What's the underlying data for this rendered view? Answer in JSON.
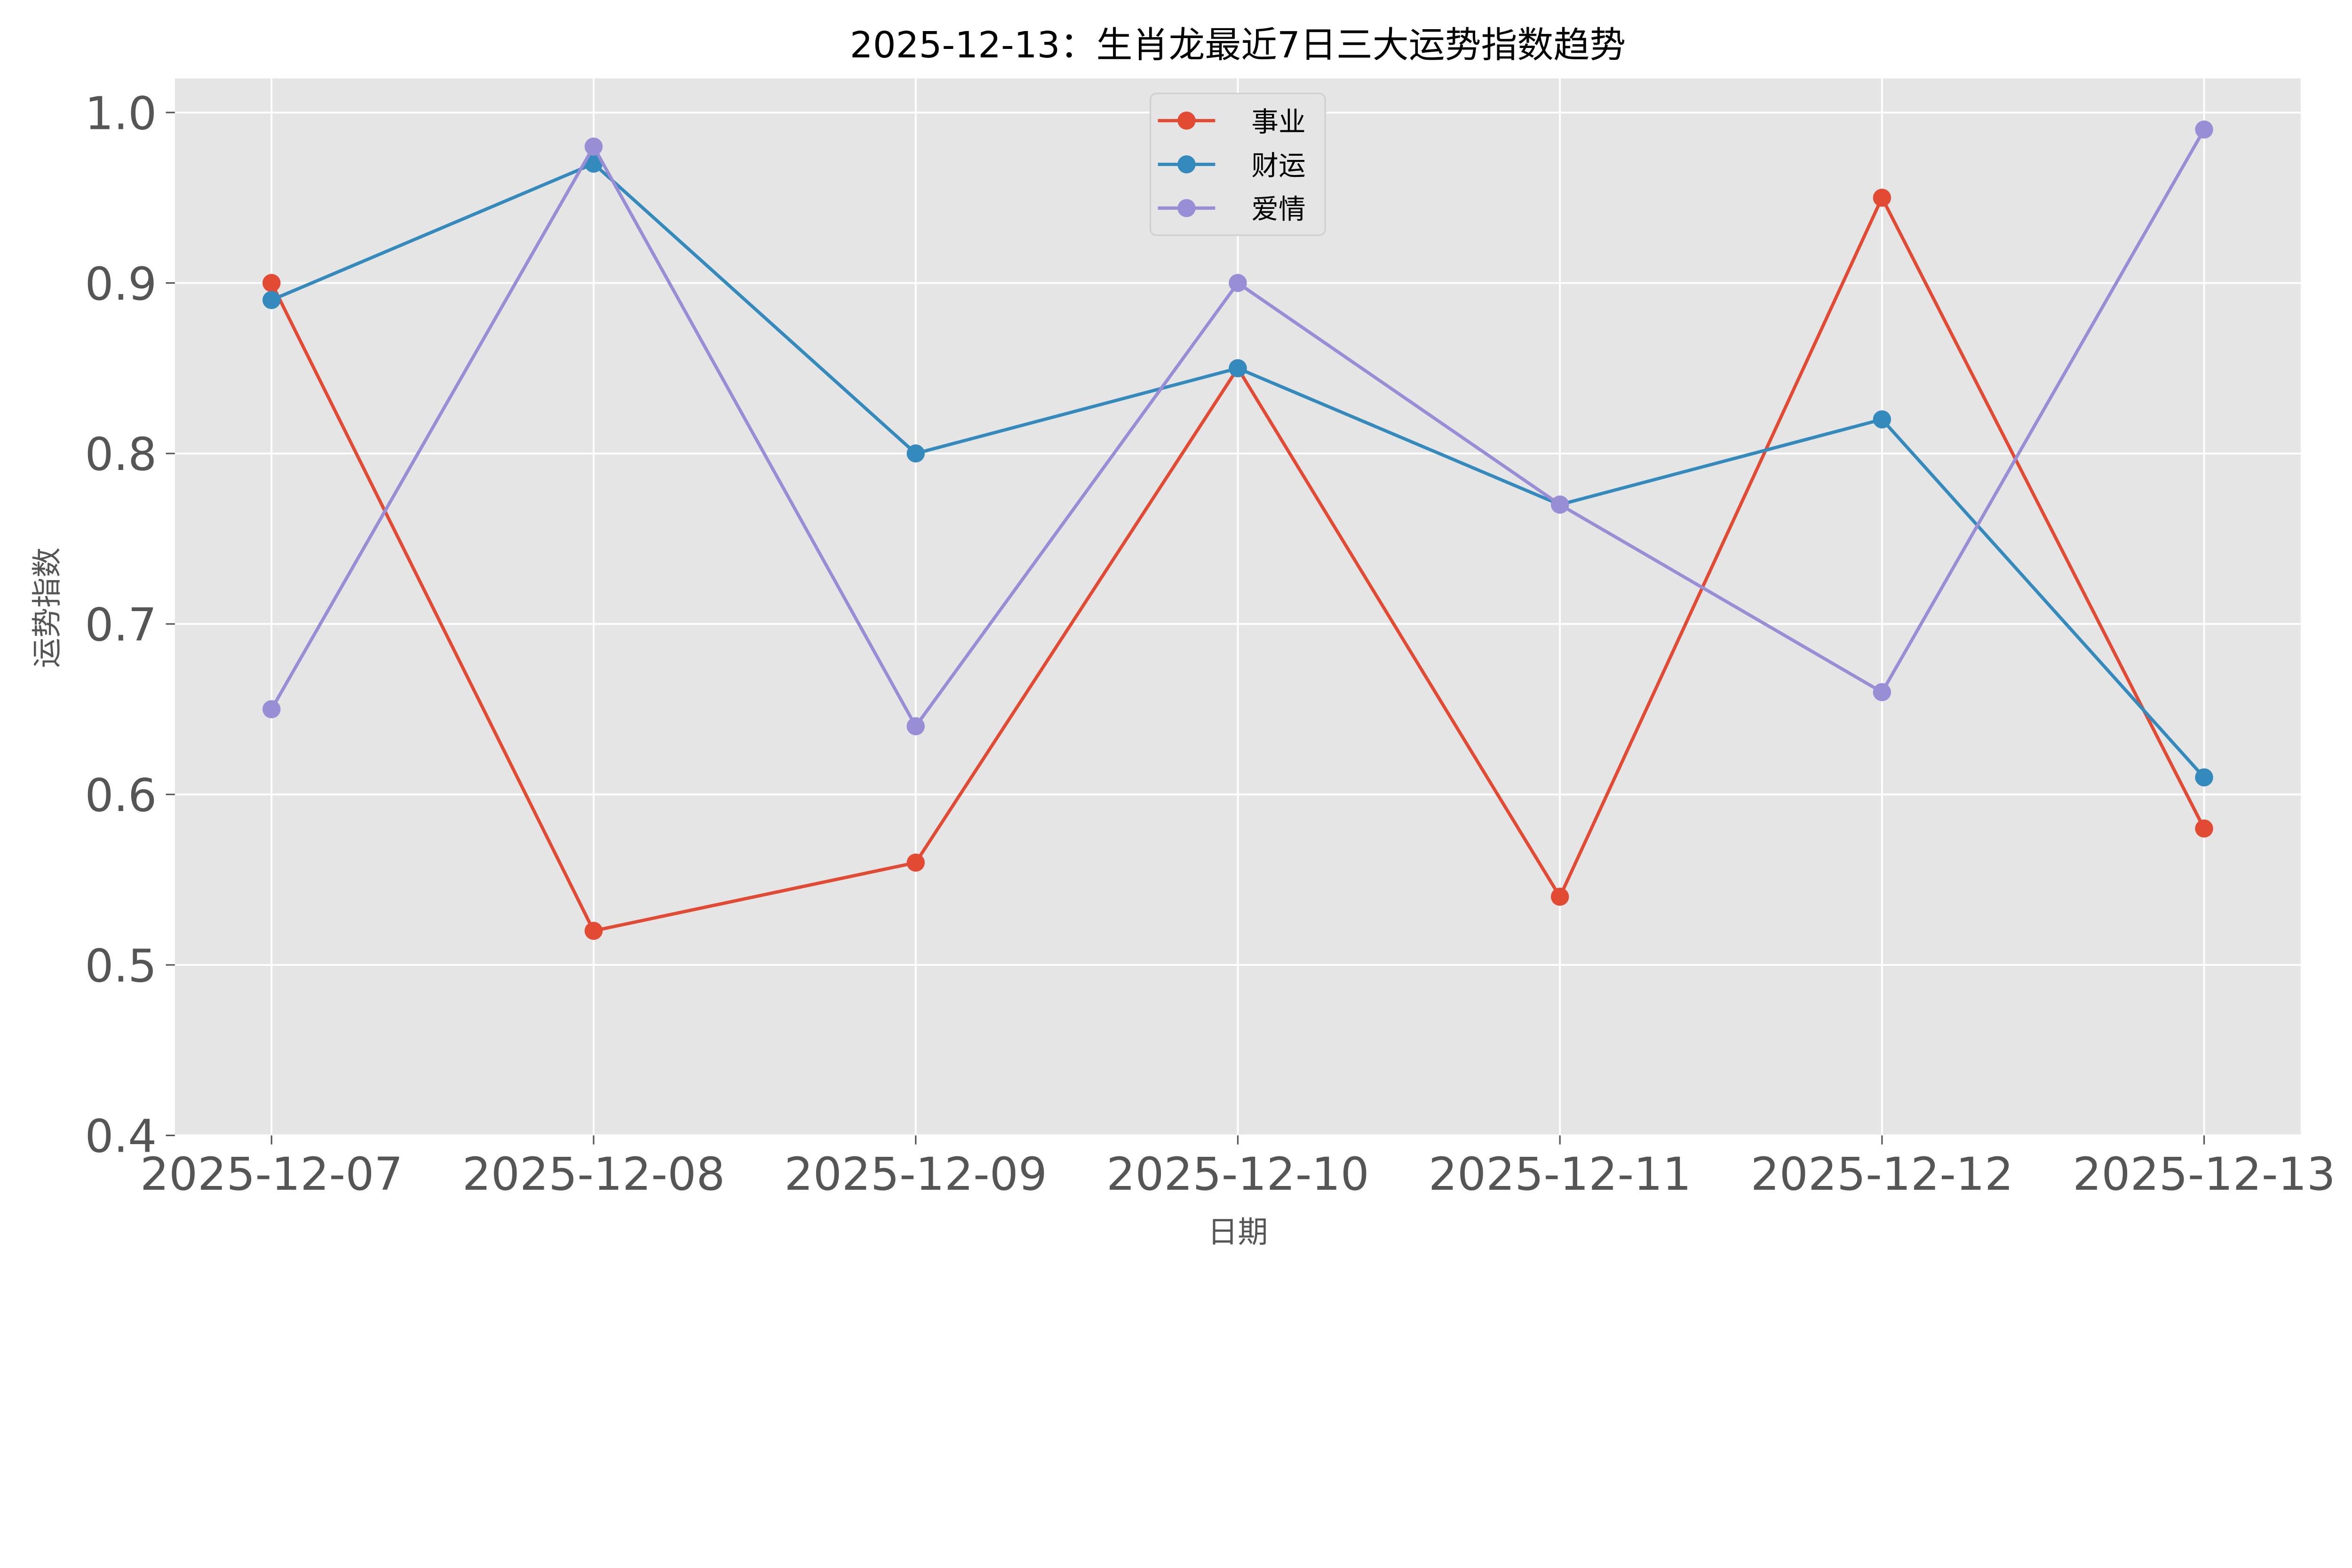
{
  "chart_data": {
    "type": "line",
    "title": "2025-12-13：生肖龙最近7日三大运势指数趋势",
    "xlabel": "日期",
    "ylabel": "运势指数",
    "categories": [
      "2025-12-07",
      "2025-12-08",
      "2025-12-09",
      "2025-12-10",
      "2025-12-11",
      "2025-12-12",
      "2025-12-13"
    ],
    "yticks": [
      "0.4",
      "0.5",
      "0.6",
      "0.7",
      "0.8",
      "0.9",
      "1.0"
    ],
    "ylim": [
      0.4,
      1.02
    ],
    "grid": true,
    "legend_position": "top-center",
    "background": "#e5e5e5",
    "series": [
      {
        "name": "事业",
        "color": "#e24a33",
        "values": [
          0.9,
          0.52,
          0.56,
          0.85,
          0.54,
          0.95,
          0.58
        ]
      },
      {
        "name": "财运",
        "color": "#348abd",
        "values": [
          0.89,
          0.97,
          0.8,
          0.85,
          0.77,
          0.82,
          0.61
        ]
      },
      {
        "name": "爱情",
        "color": "#988ed5",
        "values": [
          0.65,
          0.98,
          0.64,
          0.9,
          0.77,
          0.66,
          0.99
        ]
      }
    ]
  }
}
